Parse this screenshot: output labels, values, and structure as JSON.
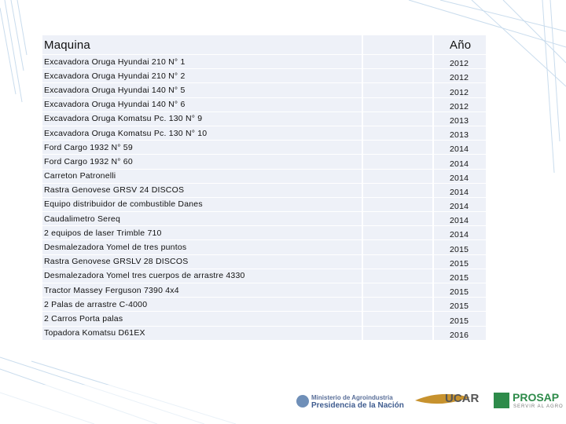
{
  "table": {
    "header": [
      "Maquina",
      "Año"
    ],
    "rows": [
      [
        "Excavadora Oruga Hyundai 210 N° 1",
        2012
      ],
      [
        "Excavadora Oruga Hyundai 210 N° 2",
        2012
      ],
      [
        "Excavadora Oruga Hyundai 140 N° 5",
        2012
      ],
      [
        "Excavadora Oruga Hyundai 140 N° 6",
        2012
      ],
      [
        "Excavadora Oruga Komatsu Pc. 130 N° 9",
        2013
      ],
      [
        "Excavadora Oruga Komatsu Pc. 130 N° 10",
        2013
      ],
      [
        "Ford Cargo 1932 N° 59",
        2014
      ],
      [
        "Ford Cargo 1932 N° 60",
        2014
      ],
      [
        "Carreton Patronelli",
        2014
      ],
      [
        "Rastra Genovese GRSV 24 DISCOS",
        2014
      ],
      [
        "Equipo distribuidor de combustible  Danes",
        2014
      ],
      [
        "Caudalimetro Sereq",
        2014
      ],
      [
        "2 equipos de  laser   Trimble 710",
        2014
      ],
      [
        "Desmalezadora Yomel de tres puntos",
        2015
      ],
      [
        "Rastra Genovese  GRSLV 28 DISCOS",
        2015
      ],
      [
        "Desmalezadora Yomel tres cuerpos de arrastre    4330",
        2015
      ],
      [
        "Tractor Massey Ferguson 7390 4x4",
        2015
      ],
      [
        "2 Palas de arrastre C-4000",
        2015
      ],
      [
        "2 Carros Porta palas",
        2015
      ],
      [
        "Topadora Komatsu D61EX",
        2016
      ]
    ]
  },
  "footer": {
    "ministry": "Ministerio de Agroindustria",
    "presidency": "Presidencia de la Nación",
    "ucar": "UCAR",
    "prosap": "PROSAP",
    "prosap_tagline": "SERVIR AL AGRO"
  }
}
